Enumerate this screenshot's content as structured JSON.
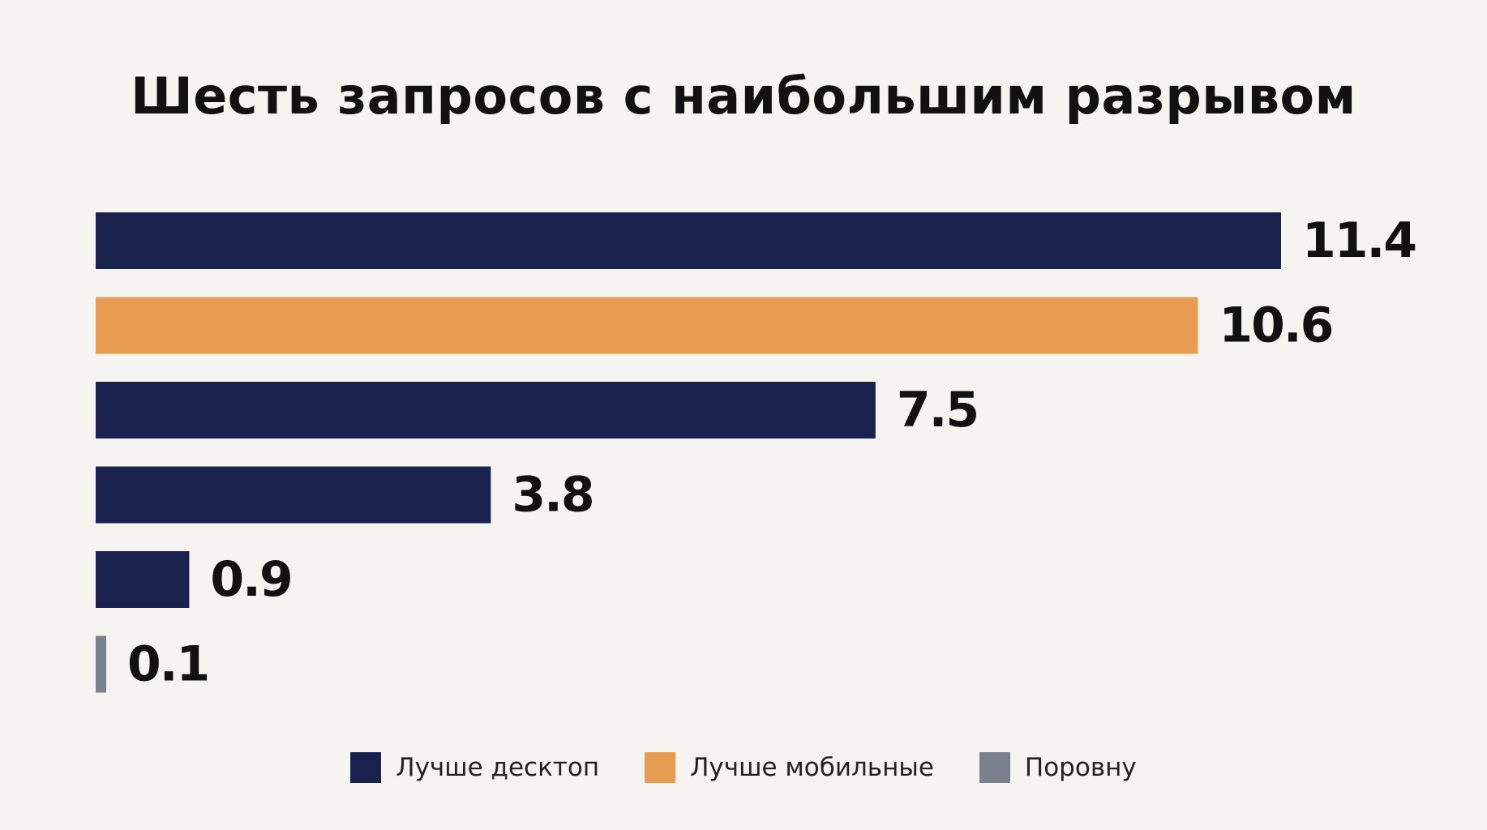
{
  "chart_data": {
    "type": "bar",
    "orientation": "horizontal",
    "title": "Шесть запросов с наибольшим разрывом",
    "values": [
      11.4,
      10.6,
      7.5,
      3.8,
      0.9,
      0.1
    ],
    "value_labels": [
      "11.4",
      "10.6",
      "7.5",
      "3.8",
      "0.9",
      "0.1"
    ],
    "bar_groups": [
      "Лучше десктоп",
      "Лучше мобильные",
      "Лучше десктоп",
      "Лучше десктоп",
      "Лучше десктоп",
      "Поровну"
    ],
    "xlim": [
      0,
      11.4
    ],
    "grid": false,
    "legend_position": "bottom",
    "legend": [
      {
        "label": "Лучше десктоп",
        "color": "#1b214d"
      },
      {
        "label": "Лучше мобильные",
        "color": "#e89b52"
      },
      {
        "label": "Поровну",
        "color": "#7b818c"
      }
    ]
  }
}
